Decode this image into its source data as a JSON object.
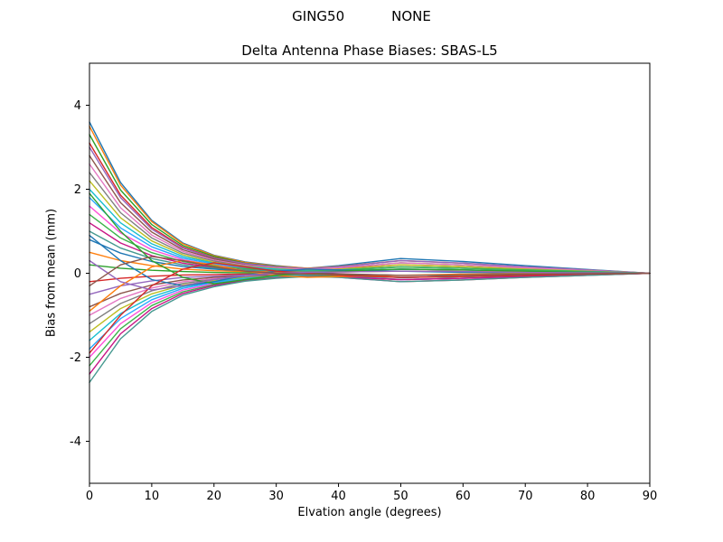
{
  "header": {
    "left": "GING50",
    "right": "NONE"
  },
  "chart_data": {
    "type": "line",
    "title": "Delta Antenna Phase Biases: SBAS-L5",
    "xlabel": "Elvation angle (degrees)",
    "ylabel": "Bias from mean (mm)",
    "xlim": [
      0,
      90
    ],
    "ylim": [
      -5,
      5
    ],
    "x_ticks": [
      0,
      10,
      20,
      30,
      40,
      50,
      60,
      70,
      80,
      90
    ],
    "y_ticks": [
      -4,
      -2,
      0,
      2,
      4
    ],
    "grid": false,
    "legend": "none",
    "x": [
      0,
      5,
      10,
      15,
      20,
      25,
      30,
      35,
      40,
      50,
      60,
      70,
      80,
      90
    ],
    "palette": [
      "#1f77b4",
      "#ff7f0e",
      "#2ca02c",
      "#d62728",
      "#9467bd",
      "#8c564b",
      "#e377c2",
      "#7f7f7f",
      "#bcbd22",
      "#17becf",
      "#29a8ff",
      "#ff4fd8",
      "#3cb44b",
      "#c71585",
      "#469990"
    ],
    "series": [
      {
        "values": [
          3.6,
          2.16,
          1.26,
          0.72,
          0.43,
          0.27,
          0.18,
          0.12,
          0.18,
          0.35,
          0.28,
          0.18,
          0.09,
          0
        ]
      },
      {
        "values": [
          3.5,
          2.1,
          1.23,
          0.7,
          0.42,
          0.26,
          0.17,
          0.12,
          0.16,
          0.3,
          0.24,
          0.15,
          0.08,
          0
        ]
      },
      {
        "values": [
          3.3,
          1.98,
          1.16,
          0.66,
          0.4,
          0.24,
          0.16,
          0.1,
          0.13,
          0.25,
          0.2,
          0.13,
          0.06,
          0
        ]
      },
      {
        "values": [
          3.1,
          1.86,
          1.09,
          0.62,
          0.37,
          0.23,
          0.14,
          0.09,
          0.11,
          0.2,
          0.16,
          0.1,
          0.05,
          0
        ]
      },
      {
        "values": [
          3.0,
          1.8,
          1.05,
          0.6,
          0.36,
          0.23,
          0.15,
          0.11,
          0.15,
          0.3,
          0.24,
          0.15,
          0.08,
          0
        ]
      },
      {
        "values": [
          2.8,
          1.68,
          0.98,
          0.56,
          0.34,
          0.2,
          0.13,
          0.08,
          0.09,
          0.15,
          0.12,
          0.08,
          0.04,
          0
        ]
      },
      {
        "values": [
          2.6,
          1.56,
          0.91,
          0.52,
          0.31,
          0.19,
          0.13,
          0.09,
          0.13,
          0.25,
          0.2,
          0.13,
          0.06,
          0
        ]
      },
      {
        "values": [
          2.4,
          1.44,
          0.84,
          0.48,
          0.29,
          0.17,
          0.11,
          0.06,
          0.06,
          0.1,
          0.08,
          0.05,
          0.03,
          0
        ]
      },
      {
        "values": [
          2.2,
          1.32,
          0.77,
          0.44,
          0.26,
          0.16,
          0.11,
          0.07,
          0.1,
          0.2,
          0.16,
          0.1,
          0.05,
          0
        ]
      },
      {
        "values": [
          2.0,
          1.2,
          0.7,
          0.4,
          0.24,
          0.15,
          0.1,
          0.06,
          0.08,
          0.15,
          0.12,
          0.08,
          0.04,
          0
        ]
      },
      {
        "values": [
          1.8,
          1.08,
          0.63,
          0.36,
          0.22,
          0.13,
          0.08,
          0.05,
          0.06,
          0.1,
          0.08,
          0.05,
          0.03,
          0
        ]
      },
      {
        "values": [
          1.6,
          0.96,
          0.56,
          0.32,
          0.19,
          0.11,
          0.07,
          0.04,
          0.04,
          0.05,
          0.04,
          0.03,
          0.01,
          0
        ]
      },
      {
        "values": [
          1.4,
          0.84,
          0.49,
          0.28,
          0.17,
          0.11,
          0.07,
          0.05,
          0.07,
          0.15,
          0.12,
          0.08,
          0.04,
          0
        ]
      },
      {
        "values": [
          1.2,
          0.72,
          0.42,
          0.24,
          0.14,
          0.08,
          0.04,
          0.02,
          -0.01,
          -0.05,
          -0.04,
          -0.03,
          -0.01,
          0
        ]
      },
      {
        "values": [
          1.0,
          0.6,
          0.35,
          0.2,
          0.12,
          0.08,
          0.05,
          0.04,
          0.05,
          0.1,
          0.08,
          0.05,
          0.03,
          0
        ]
      },
      {
        "values": [
          0.8,
          0.48,
          0.28,
          0.16,
          0.1,
          0.05,
          0.02,
          0.0,
          -0.03,
          -0.1,
          -0.08,
          -0.05,
          -0.03,
          0
        ]
      },
      {
        "values": [
          0.5,
          0.3,
          0.18,
          0.1,
          0.06,
          0.04,
          0.03,
          0.02,
          0.03,
          0.05,
          0.04,
          0.03,
          0.01,
          0
        ]
      },
      {
        "values": [
          0.2,
          0.12,
          0.07,
          0.04,
          0.02,
          0.01,
          0.0,
          -0.01,
          -0.02,
          -0.05,
          -0.04,
          -0.03,
          -0.01,
          0
        ]
      },
      {
        "values": [
          -0.2,
          -0.12,
          -0.07,
          -0.04,
          -0.03,
          -0.02,
          -0.02,
          -0.02,
          -0.04,
          -0.1,
          -0.08,
          -0.05,
          -0.03,
          0
        ]
      },
      {
        "values": [
          -0.5,
          -0.3,
          -0.18,
          -0.1,
          -0.07,
          -0.04,
          -0.04,
          -0.03,
          -0.06,
          -0.15,
          -0.12,
          -0.08,
          -0.04,
          0
        ]
      },
      {
        "values": [
          -0.8,
          -0.48,
          -0.28,
          -0.16,
          -0.1,
          -0.06,
          -0.04,
          -0.02,
          -0.03,
          -0.05,
          -0.04,
          -0.03,
          -0.01,
          0
        ]
      },
      {
        "values": [
          -1.0,
          -0.6,
          -0.35,
          -0.2,
          -0.13,
          -0.08,
          -0.06,
          -0.04,
          -0.07,
          -0.15,
          -0.12,
          -0.08,
          -0.04,
          0
        ]
      },
      {
        "values": [
          -1.2,
          -0.72,
          -0.42,
          -0.24,
          -0.15,
          -0.09,
          -0.06,
          -0.04,
          -0.05,
          -0.1,
          -0.08,
          -0.05,
          -0.03,
          0
        ]
      },
      {
        "values": [
          -1.4,
          -0.84,
          -0.49,
          -0.28,
          -0.18,
          -0.11,
          -0.08,
          -0.06,
          -0.09,
          -0.2,
          -0.16,
          -0.1,
          -0.05,
          0
        ]
      },
      {
        "values": [
          -1.6,
          -0.96,
          -0.56,
          -0.32,
          -0.2,
          -0.12,
          -0.07,
          -0.05,
          -0.06,
          -0.1,
          -0.08,
          -0.05,
          -0.03,
          0
        ]
      },
      {
        "values": [
          -1.8,
          -1.08,
          -0.63,
          -0.36,
          -0.22,
          -0.14,
          -0.09,
          -0.06,
          -0.08,
          -0.15,
          -0.12,
          -0.08,
          -0.04,
          0
        ]
      },
      {
        "values": [
          -2.0,
          -1.2,
          -0.7,
          -0.4,
          -0.25,
          -0.15,
          -0.1,
          -0.07,
          -0.1,
          -0.2,
          -0.16,
          -0.1,
          -0.05,
          0
        ]
      },
      {
        "values": [
          -2.2,
          -1.32,
          -0.77,
          -0.44,
          -0.27,
          -0.16,
          -0.1,
          -0.06,
          -0.06,
          -0.1,
          -0.08,
          -0.05,
          -0.03,
          0
        ]
      },
      {
        "values": [
          -2.4,
          -1.44,
          -0.84,
          -0.48,
          -0.29,
          -0.18,
          -0.11,
          -0.07,
          -0.09,
          -0.15,
          -0.12,
          -0.08,
          -0.04,
          0
        ]
      },
      {
        "values": [
          -2.6,
          -1.56,
          -0.91,
          -0.52,
          -0.32,
          -0.19,
          -0.12,
          -0.08,
          -0.1,
          -0.2,
          -0.16,
          -0.1,
          -0.05,
          0
        ]
      },
      {
        "values": [
          0.9,
          0.3,
          -0.15,
          -0.3,
          -0.2,
          -0.05,
          0.05,
          0.1,
          0.08,
          0.05,
          0.02,
          0.01,
          0.0,
          0
        ]
      },
      {
        "values": [
          -0.9,
          -0.3,
          0.15,
          0.3,
          0.2,
          0.05,
          -0.05,
          -0.1,
          -0.08,
          -0.05,
          -0.02,
          -0.01,
          0.0,
          0
        ]
      },
      {
        "values": [
          1.9,
          1.0,
          0.3,
          -0.1,
          -0.25,
          -0.15,
          -0.05,
          0.0,
          0.05,
          0.1,
          0.08,
          0.05,
          0.02,
          0
        ]
      },
      {
        "values": [
          -1.9,
          -1.0,
          -0.3,
          0.1,
          0.25,
          0.15,
          0.05,
          0.0,
          -0.05,
          -0.1,
          -0.08,
          -0.05,
          -0.02,
          0
        ]
      },
      {
        "values": [
          0.3,
          -0.2,
          -0.4,
          -0.3,
          -0.15,
          -0.05,
          0.0,
          0.02,
          0.03,
          0.05,
          0.04,
          0.02,
          0.01,
          0
        ]
      },
      {
        "values": [
          -0.3,
          0.2,
          0.4,
          0.3,
          0.15,
          0.05,
          0.0,
          -0.02,
          -0.03,
          -0.05,
          -0.04,
          -0.02,
          -0.01,
          0
        ]
      }
    ]
  }
}
